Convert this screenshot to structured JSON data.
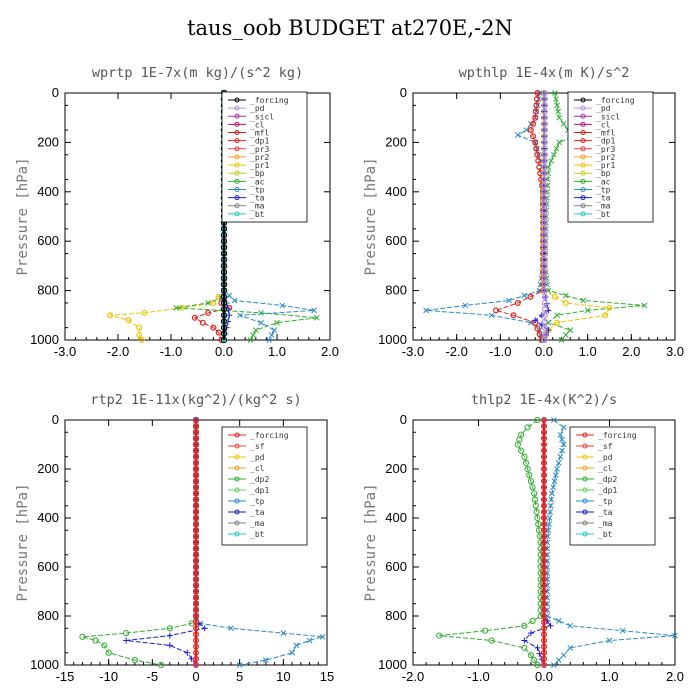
{
  "title": "taus_oob  BUDGET at270E,-2N",
  "chart_data": [
    {
      "type": "line",
      "title": "wprtp  1E-7x(m kg)/(s^2 kg)",
      "ylabel": "Pressure [hPa]",
      "xlim": [
        -3.0,
        2.0
      ],
      "ylim": [
        1000,
        0
      ],
      "xticks": [
        "-3.0",
        "-2.0",
        "-1.0",
        "0.0",
        "1.0",
        "2.0"
      ],
      "yticks": [
        "0",
        "200",
        "400",
        "600",
        "800",
        "1000"
      ],
      "legend_position": "top-right",
      "legend": [
        "_forcing",
        "_pd",
        "_sicl",
        "_cl",
        "_mfl",
        "_dp1",
        "_pr3",
        "_pr2",
        "_pr1",
        "_bp",
        "_ac",
        "_tp",
        "_ta",
        "_ma",
        "_bt"
      ],
      "series": [
        {
          "name": "_dp1",
          "color": "#e8201c",
          "marker": "circle",
          "y": [
            0,
            200,
            400,
            600,
            800,
            850,
            870,
            890,
            910,
            930,
            950,
            970,
            1000
          ],
          "x": [
            0,
            0,
            0,
            0,
            0,
            -0.05,
            0.1,
            -0.3,
            -0.55,
            -0.4,
            -0.2,
            -0.1,
            -0.05
          ]
        },
        {
          "name": "_pr1",
          "color": "#f2c200",
          "marker": "circle",
          "y": [
            0,
            200,
            400,
            600,
            800,
            850,
            870,
            890,
            900,
            920,
            950,
            980,
            1000
          ],
          "x": [
            0,
            0,
            0,
            0,
            0,
            -0.2,
            -0.8,
            -1.5,
            -2.15,
            -1.8,
            -1.6,
            -1.6,
            -1.55
          ]
        },
        {
          "name": "_ac",
          "color": "#2fae2f",
          "marker": "x",
          "y": [
            0,
            200,
            400,
            600,
            800,
            830,
            850,
            870,
            890,
            910,
            930,
            960,
            1000
          ],
          "x": [
            0,
            0,
            0,
            0,
            0,
            -0.05,
            -0.3,
            -0.9,
            0.7,
            1.75,
            1.0,
            0.6,
            0.5
          ]
        },
        {
          "name": "_tp",
          "color": "#2a8ac8",
          "marker": "x",
          "y": [
            0,
            200,
            400,
            600,
            800,
            840,
            860,
            880,
            900,
            930,
            960,
            1000
          ],
          "x": [
            0,
            0,
            0,
            0,
            0,
            0.2,
            1.1,
            1.7,
            0.3,
            0.7,
            0.95,
            0.85
          ]
        },
        {
          "name": "_ta",
          "color": "#1a1ad8",
          "marker": "plus",
          "y": [
            0,
            800,
            850,
            900,
            950,
            1000
          ],
          "x": [
            0,
            0,
            0.05,
            0.1,
            0.05,
            0.0
          ]
        },
        {
          "name": "_bt",
          "color": "#20c8c8",
          "marker": "diamond",
          "y": [
            0,
            800,
            900,
            1000
          ],
          "x": [
            0,
            0,
            0.02,
            0
          ]
        },
        {
          "name": "_forcing",
          "color": "#000000",
          "marker": "circle-open",
          "y": [
            0,
            100,
            200,
            300,
            400,
            500,
            600,
            700,
            800,
            900,
            1000
          ],
          "x": [
            0,
            0,
            0,
            0,
            0,
            0,
            0,
            0,
            0,
            0,
            0
          ]
        }
      ]
    },
    {
      "type": "line",
      "title": "wpthlp  1E-4x(m K)/s^2",
      "ylabel": "Pressure [hPa]",
      "xlim": [
        -3.0,
        3.0
      ],
      "ylim": [
        1000,
        0
      ],
      "xticks": [
        "-3.0",
        "-2.0",
        "-1.0",
        "0.0",
        "1.0",
        "2.0",
        "3.0"
      ],
      "yticks": [
        "0",
        "200",
        "400",
        "600",
        "800",
        "1000"
      ],
      "legend_position": "top-right",
      "legend": [
        "_forcing",
        "_pd",
        "_sicl",
        "_cl",
        "_mfl",
        "_dp1",
        "_pr3",
        "_pr2",
        "_pr1",
        "_bp",
        "_ac",
        "_tp",
        "_ta",
        "_ma",
        "_bt"
      ],
      "series": [
        {
          "name": "_tp",
          "color": "#2a8ac8",
          "marker": "x",
          "y": [
            0,
            50,
            100,
            150,
            170,
            200,
            300,
            500,
            700,
            800,
            840,
            860,
            880,
            900,
            930,
            960,
            1000
          ],
          "x": [
            -0.1,
            -0.15,
            -0.2,
            -0.4,
            -0.6,
            -0.2,
            -0.05,
            -0.02,
            -0.02,
            -0.1,
            -0.8,
            -1.8,
            -2.7,
            -1.2,
            -0.3,
            -0.1,
            -0.05
          ]
        },
        {
          "name": "_ac",
          "color": "#2fae2f",
          "marker": "x",
          "y": [
            0,
            50,
            100,
            150,
            170,
            200,
            300,
            500,
            700,
            800,
            840,
            860,
            880,
            900,
            930,
            960,
            1000
          ],
          "x": [
            0.25,
            0.3,
            0.35,
            0.55,
            0.75,
            0.35,
            0.1,
            0.05,
            0.02,
            0.1,
            0.9,
            2.3,
            1.0,
            0.3,
            0.1,
            0.6,
            0.4
          ]
        },
        {
          "name": "_dp1",
          "color": "#e8201c",
          "marker": "circle",
          "y": [
            0,
            100,
            150,
            200,
            400,
            800,
            850,
            880,
            900,
            930,
            1000
          ],
          "x": [
            -0.15,
            -0.2,
            -0.3,
            -0.2,
            -0.02,
            -0.02,
            -0.6,
            -1.1,
            -0.7,
            -0.2,
            -0.05
          ]
        },
        {
          "name": "_pr1",
          "color": "#f2c200",
          "marker": "circle",
          "y": [
            0,
            800,
            850,
            870,
            900,
            930,
            960,
            1000
          ],
          "x": [
            0,
            0,
            0.5,
            1.5,
            1.4,
            0.3,
            0.1,
            0.0
          ]
        },
        {
          "name": "_ta",
          "color": "#1a1ad8",
          "marker": "plus",
          "y": [
            0,
            800,
            880,
            920,
            960,
            1000
          ],
          "x": [
            0,
            0,
            0.1,
            -0.2,
            0.1,
            0
          ]
        },
        {
          "name": "_forcing",
          "color": "#b090d8",
          "marker": "circle",
          "y": [
            0,
            200,
            400,
            600,
            800,
            1000
          ],
          "x": [
            0.02,
            0.02,
            0.02,
            0.02,
            0.02,
            0.02
          ]
        }
      ]
    },
    {
      "type": "line",
      "title": "rtp2  1E-11x(kg^2)/(kg^2 s)",
      "ylabel": "Pressure [hPa]",
      "xlim": [
        -15,
        15
      ],
      "ylim": [
        1000,
        0
      ],
      "xticks": [
        "-15",
        "-10",
        "-5",
        "0",
        "5",
        "10",
        "15"
      ],
      "yticks": [
        "0",
        "200",
        "400",
        "600",
        "800",
        "1000"
      ],
      "legend_position": "top-right",
      "legend": [
        "_forcing",
        "_sf",
        "_pd",
        "_cl",
        "_dp2",
        "_dp1",
        "_tp",
        "_ta",
        "_ma",
        "_bt"
      ],
      "series": [
        {
          "name": "_dp1",
          "color": "#2fae2f",
          "marker": "circle-open",
          "y": [
            0,
            800,
            830,
            850,
            870,
            885,
            900,
            920,
            950,
            980,
            1000
          ],
          "x": [
            0,
            0,
            -0.5,
            -3,
            -8,
            -13,
            -11.5,
            -10.5,
            -10,
            -7,
            -4
          ]
        },
        {
          "name": "_tp",
          "color": "#2a8ac8",
          "marker": "x",
          "y": [
            0,
            800,
            830,
            850,
            870,
            885,
            900,
            920,
            950,
            980,
            1000
          ],
          "x": [
            0,
            0,
            0.5,
            4,
            10,
            14.5,
            13,
            11.5,
            11,
            8,
            5
          ]
        },
        {
          "name": "_ta",
          "color": "#1a1ad8",
          "marker": "plus",
          "y": [
            0,
            800,
            830,
            850,
            880,
            900,
            920,
            950,
            1000
          ],
          "x": [
            0,
            0,
            0.3,
            1.0,
            -3,
            -8,
            -3,
            -1,
            0
          ]
        },
        {
          "name": "_forcing",
          "color": "#e8201c",
          "marker": "circle",
          "y": [
            0,
            100,
            200,
            300,
            400,
            500,
            600,
            700,
            800,
            900,
            1000
          ],
          "x": [
            0,
            0,
            0,
            0,
            0,
            0,
            0,
            0,
            0,
            0,
            0
          ]
        }
      ]
    },
    {
      "type": "line",
      "title": "thlp2  1E-4x(K^2)/s",
      "ylabel": "Pressure [hPa]",
      "xlim": [
        -2.0,
        2.0
      ],
      "ylim": [
        1000,
        0
      ],
      "xticks": [
        "-2.0",
        "-1.0",
        "0.0",
        "1.0",
        "2.0"
      ],
      "yticks": [
        "0",
        "200",
        "400",
        "600",
        "800",
        "1000"
      ],
      "legend_position": "top-right",
      "legend": [
        "_forcing",
        "_sf",
        "_pd",
        "_cl",
        "_dp2",
        "_dp1",
        "_tp",
        "_ta",
        "_ma",
        "_bt"
      ],
      "series": [
        {
          "name": "_dp1",
          "color": "#2fae2f",
          "marker": "circle-open",
          "y": [
            0,
            30,
            60,
            100,
            150,
            200,
            300,
            500,
            800,
            840,
            860,
            880,
            900,
            930,
            960,
            1000
          ],
          "x": [
            -0.1,
            -0.25,
            -0.35,
            -0.4,
            -0.3,
            -0.25,
            -0.15,
            -0.05,
            -0.05,
            -0.3,
            -0.9,
            -1.6,
            -0.8,
            -0.3,
            -0.2,
            -0.1
          ]
        },
        {
          "name": "_tp",
          "color": "#2a8ac8",
          "marker": "x",
          "y": [
            0,
            30,
            60,
            100,
            150,
            200,
            300,
            500,
            800,
            840,
            860,
            880,
            900,
            930,
            960,
            1000
          ],
          "x": [
            0.15,
            0.3,
            0.25,
            0.3,
            0.25,
            0.2,
            0.12,
            0.05,
            0.05,
            0.4,
            1.2,
            2.0,
            1.0,
            0.4,
            0.3,
            0.15
          ]
        },
        {
          "name": "_ta",
          "color": "#1a1ad8",
          "marker": "plus",
          "y": [
            0,
            800,
            840,
            870,
            900,
            930,
            1000
          ],
          "x": [
            0,
            0,
            0.1,
            -0.2,
            -0.3,
            -0.1,
            0
          ]
        },
        {
          "name": "_forcing",
          "color": "#e8201c",
          "marker": "circle",
          "y": [
            0,
            100,
            200,
            300,
            400,
            500,
            600,
            700,
            800,
            900,
            1000
          ],
          "x": [
            0,
            0,
            0,
            0,
            0,
            0,
            0,
            0,
            0,
            0,
            0
          ]
        }
      ]
    }
  ]
}
